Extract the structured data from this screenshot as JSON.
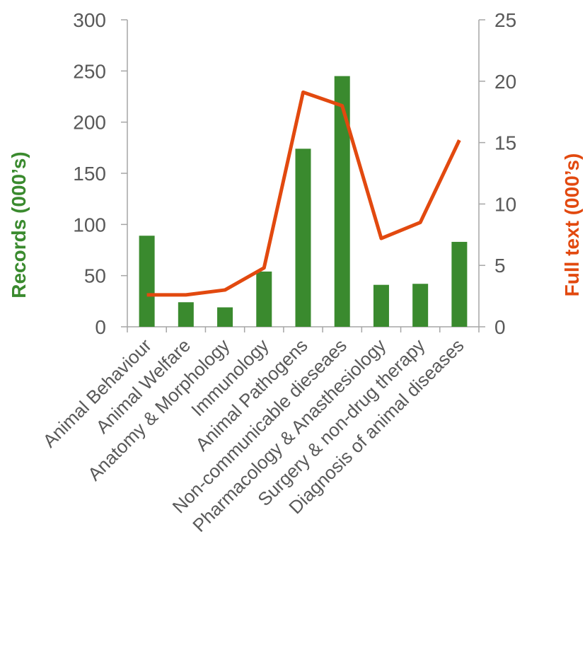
{
  "chart_data": {
    "type": "bar",
    "categories": [
      "Animal Behaviour",
      "Animal Welfare",
      "Anatomy & Morphology",
      "Immunology",
      "Animal Pathogens",
      "Non-communicable dieseaes",
      "Pharmacology & Anasthesiology",
      "Surgery & non-drug therapy",
      "Diagnosis of animal diseases"
    ],
    "series": [
      {
        "name": "Records (000’s)",
        "type": "bar",
        "axis": "left",
        "color": "#3a8a2e",
        "values": [
          89,
          24,
          19,
          54,
          174,
          245,
          41,
          42,
          83
        ]
      },
      {
        "name": "Full text (000’s)",
        "type": "line",
        "axis": "right",
        "color": "#e2490f",
        "values": [
          2.6,
          2.6,
          3.0,
          4.8,
          19.1,
          18.0,
          7.2,
          8.5,
          15.2
        ]
      }
    ],
    "ylabel": "Records (000’s)",
    "ylabel_right": "Full text (000’s)",
    "ylim": [
      0,
      300
    ],
    "ylim_right": [
      0,
      25
    ],
    "yticks": [
      "0",
      "50",
      "100",
      "150",
      "200",
      "250",
      "300"
    ],
    "yticks_right": [
      "0",
      "5",
      "10",
      "15",
      "20",
      "25"
    ],
    "grid": false,
    "legend": "none"
  }
}
